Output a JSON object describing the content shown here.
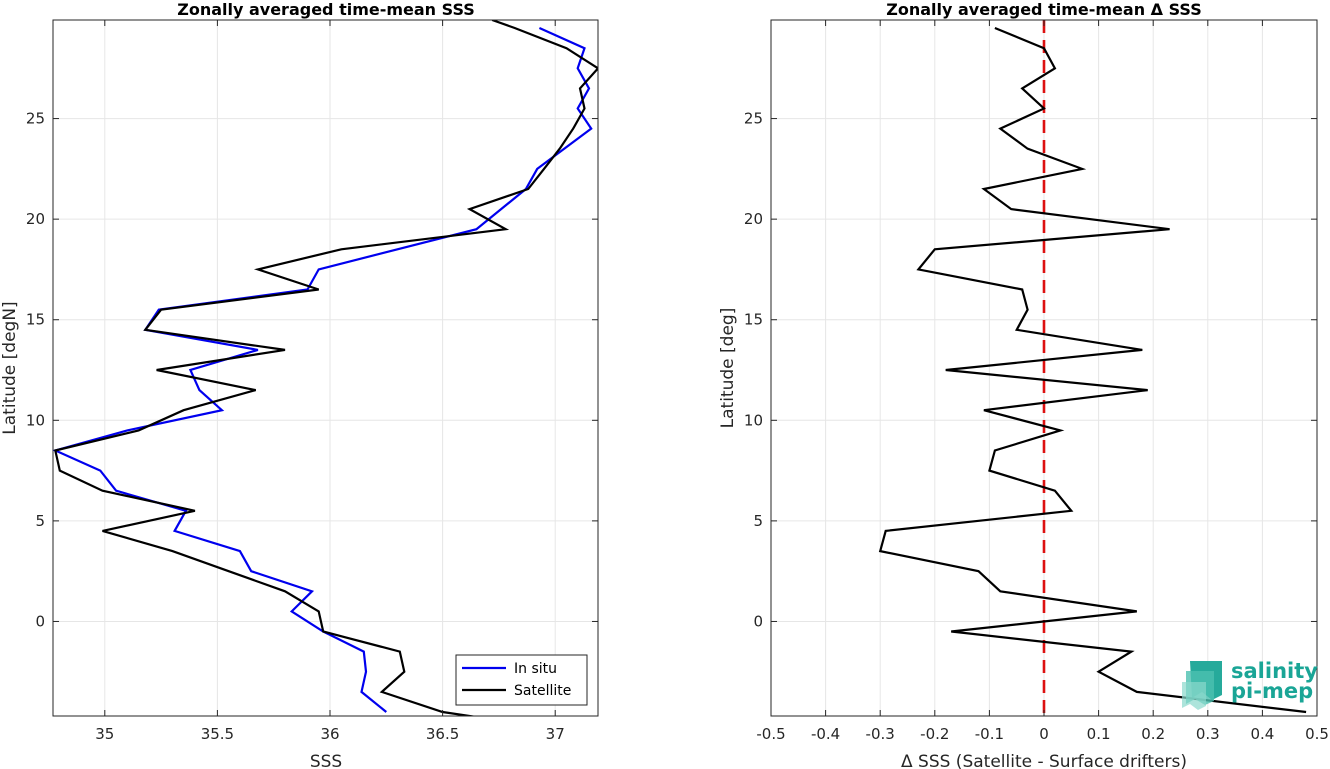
{
  "logo": {
    "line1": "salinity",
    "line2": "pi-mep",
    "color": "#1aa596"
  },
  "chart_data": [
    {
      "type": "line",
      "title": "Zonally averaged time-mean SSS",
      "xlabel": "SSS",
      "ylabel": "Latitude [degN]",
      "xlim": [
        34.77,
        37.19
      ],
      "ylim": [
        -4.7,
        29.9
      ],
      "xticks": [
        35,
        35.5,
        36,
        36.5,
        37
      ],
      "xtick_labels": [
        "35",
        "35.5",
        "36",
        "36.5",
        "37"
      ],
      "yticks": [
        0,
        5,
        10,
        15,
        20,
        25
      ],
      "ytick_labels": [
        "0",
        "5",
        "10",
        "15",
        "20",
        "25"
      ],
      "grid": true,
      "legend_position": "bottom-right",
      "series": [
        {
          "name": "In situ",
          "color": "#0000ee",
          "points": [
            [
              36.25,
              -4.5
            ],
            [
              36.14,
              -3.5
            ],
            [
              36.16,
              -2.5
            ],
            [
              36.15,
              -1.5
            ],
            [
              35.97,
              -0.5
            ],
            [
              35.83,
              0.5
            ],
            [
              35.92,
              1.5
            ],
            [
              35.65,
              2.5
            ],
            [
              35.6,
              3.5
            ],
            [
              35.31,
              4.5
            ],
            [
              35.36,
              5.5
            ],
            [
              35.05,
              6.5
            ],
            [
              34.98,
              7.5
            ],
            [
              34.78,
              8.5
            ],
            [
              35.1,
              9.5
            ],
            [
              35.52,
              10.5
            ],
            [
              35.42,
              11.5
            ],
            [
              35.38,
              12.5
            ],
            [
              35.68,
              13.5
            ],
            [
              35.18,
              14.5
            ],
            [
              35.24,
              15.5
            ],
            [
              35.9,
              16.5
            ],
            [
              35.95,
              17.5
            ],
            [
              36.65,
              19.5
            ],
            [
              36.87,
              21.5
            ],
            [
              36.92,
              22.5
            ],
            [
              37.16,
              24.5
            ],
            [
              37.1,
              25.5
            ],
            [
              37.15,
              26.5
            ],
            [
              37.1,
              27.5
            ],
            [
              37.13,
              28.5
            ],
            [
              36.93,
              29.5
            ]
          ]
        },
        {
          "name": "Satellite",
          "color": "#000000",
          "points": [
            [
              36.68,
              -4.8
            ],
            [
              36.5,
              -4.5
            ],
            [
              36.23,
              -3.5
            ],
            [
              36.33,
              -2.5
            ],
            [
              36.31,
              -1.5
            ],
            [
              35.97,
              -0.5
            ],
            [
              35.95,
              0.5
            ],
            [
              35.8,
              1.5
            ],
            [
              35.55,
              2.5
            ],
            [
              35.3,
              3.5
            ],
            [
              34.99,
              4.5
            ],
            [
              35.4,
              5.5
            ],
            [
              34.99,
              6.5
            ],
            [
              34.8,
              7.5
            ],
            [
              34.78,
              8.5
            ],
            [
              35.15,
              9.5
            ],
            [
              35.35,
              10.5
            ],
            [
              35.67,
              11.5
            ],
            [
              35.23,
              12.5
            ],
            [
              35.8,
              13.5
            ],
            [
              35.18,
              14.5
            ],
            [
              35.25,
              15.5
            ],
            [
              35.95,
              16.5
            ],
            [
              35.68,
              17.5
            ],
            [
              36.05,
              18.5
            ],
            [
              36.78,
              19.5
            ],
            [
              36.62,
              20.5
            ],
            [
              36.88,
              21.5
            ],
            [
              36.95,
              22.5
            ],
            [
              37.02,
              23.5
            ],
            [
              37.08,
              24.5
            ],
            [
              37.13,
              25.5
            ],
            [
              37.11,
              26.5
            ],
            [
              37.19,
              27.5
            ],
            [
              37.05,
              28.5
            ],
            [
              36.82,
              29.5
            ],
            [
              36.72,
              29.9
            ]
          ]
        }
      ]
    },
    {
      "type": "line",
      "title": "Zonally averaged time-mean Δ SSS",
      "xlabel": "Δ SSS (Satellite - Surface drifters)",
      "ylabel": "Latitude [deg]",
      "xlim": [
        -0.5,
        0.5
      ],
      "ylim": [
        -4.7,
        29.9
      ],
      "xticks": [
        -0.5,
        -0.4,
        -0.3,
        -0.2,
        -0.1,
        0,
        0.1,
        0.2,
        0.3,
        0.4,
        0.5
      ],
      "xtick_labels": [
        "-0.5",
        "-0.4",
        "-0.3",
        "-0.2",
        "-0.1",
        "0",
        "0.1",
        "0.2",
        "0.3",
        "0.4",
        "0.5"
      ],
      "yticks": [
        0,
        5,
        10,
        15,
        20,
        25
      ],
      "ytick_labels": [
        "0",
        "5",
        "10",
        "15",
        "20",
        "25"
      ],
      "grid": true,
      "reference_line": {
        "x": 0,
        "color": "#dd1111",
        "style": "dashed"
      },
      "series": [
        {
          "color": "#000000",
          "points": [
            [
              0.48,
              -4.5
            ],
            [
              0.17,
              -3.5
            ],
            [
              0.1,
              -2.5
            ],
            [
              0.16,
              -1.5
            ],
            [
              -0.17,
              -0.5
            ],
            [
              0.17,
              0.5
            ],
            [
              -0.08,
              1.5
            ],
            [
              -0.12,
              2.5
            ],
            [
              -0.3,
              3.5
            ],
            [
              -0.29,
              4.5
            ],
            [
              0.05,
              5.5
            ],
            [
              0.02,
              6.5
            ],
            [
              -0.1,
              7.5
            ],
            [
              -0.09,
              8.5
            ],
            [
              0.03,
              9.5
            ],
            [
              -0.11,
              10.5
            ],
            [
              0.19,
              11.5
            ],
            [
              -0.18,
              12.5
            ],
            [
              0.18,
              13.5
            ],
            [
              -0.05,
              14.5
            ],
            [
              -0.03,
              15.5
            ],
            [
              -0.04,
              16.5
            ],
            [
              -0.23,
              17.5
            ],
            [
              -0.2,
              18.5
            ],
            [
              0.23,
              19.5
            ],
            [
              -0.06,
              20.5
            ],
            [
              -0.11,
              21.5
            ],
            [
              0.07,
              22.5
            ],
            [
              -0.03,
              23.5
            ],
            [
              -0.08,
              24.5
            ],
            [
              0.0,
              25.5
            ],
            [
              -0.04,
              26.5
            ],
            [
              0.02,
              27.5
            ],
            [
              0.0,
              28.5
            ],
            [
              -0.09,
              29.5
            ]
          ]
        }
      ]
    }
  ]
}
